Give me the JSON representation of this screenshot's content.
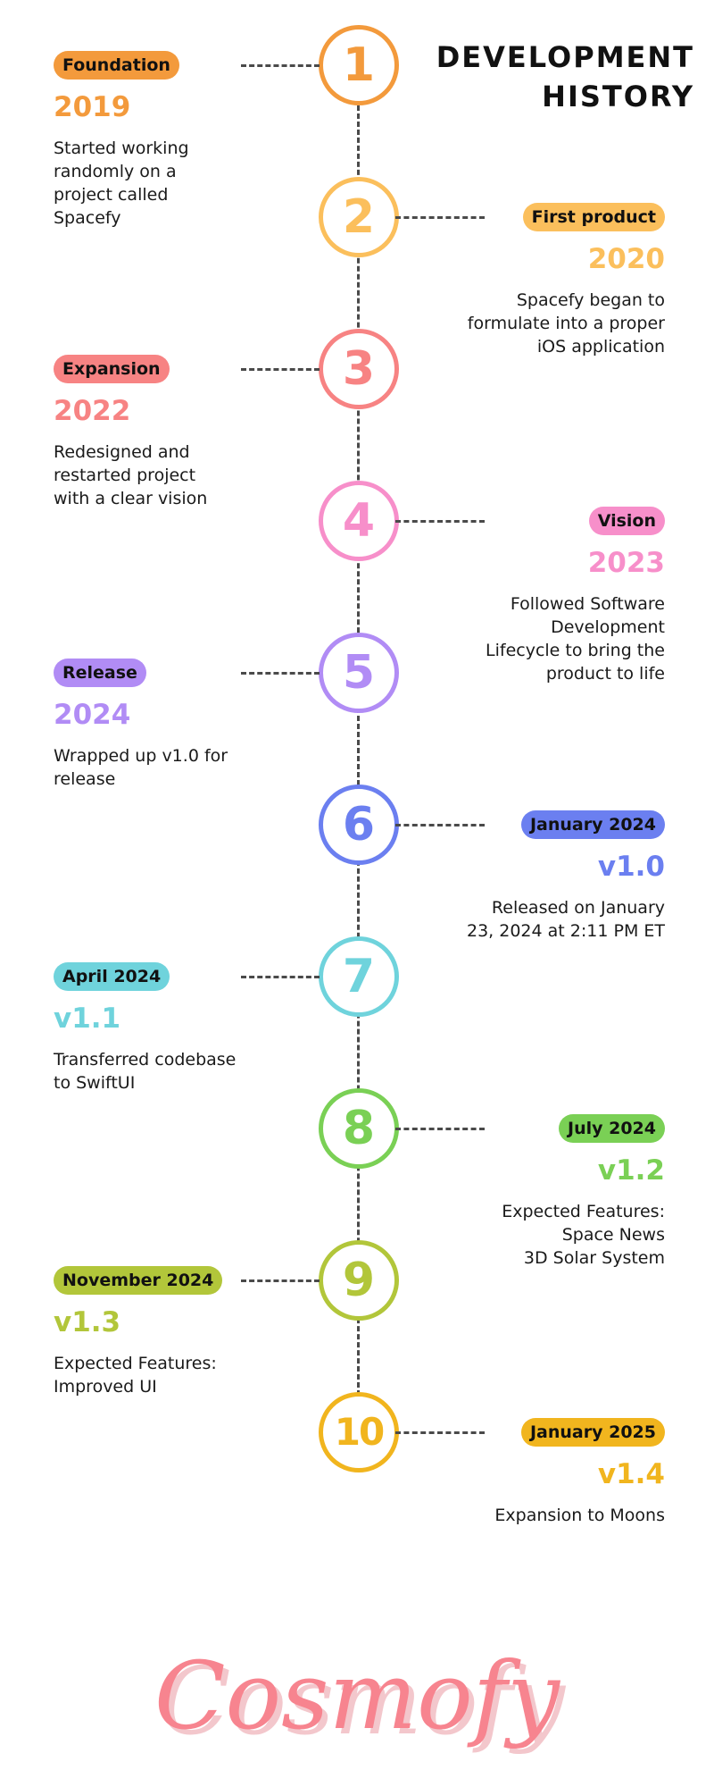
{
  "header": {
    "title_line1": "DEVELOPMENT",
    "title_line2": "HISTORY"
  },
  "milestones": [
    {
      "number": "1",
      "tag": "Foundation",
      "heading": "2019",
      "description": "Started working\nrandomly on a\nproject called\nSpacefy",
      "color": "#f39a3c"
    },
    {
      "number": "2",
      "tag": "First product",
      "heading": "2020",
      "description": "Spacefy began to\nformulate into a proper\niOS application",
      "color": "#fbbf5c"
    },
    {
      "number": "3",
      "tag": "Expansion",
      "heading": "2022",
      "description": "Redesigned and\nrestarted project\nwith a clear vision",
      "color": "#f78383"
    },
    {
      "number": "4",
      "tag": "Vision",
      "heading": "2023",
      "description": "Followed Software\nDevelopment\nLifecycle to bring the\nproduct to life",
      "color": "#f78fca"
    },
    {
      "number": "5",
      "tag": "Release",
      "heading": "2024",
      "description": "Wrapped up v1.0 for\nrelease",
      "color": "#b18cf5"
    },
    {
      "number": "6",
      "tag": "January 2024",
      "heading": "v1.0",
      "description": "Released on January\n23, 2024 at 2:11 PM ET",
      "color": "#6b7ff0"
    },
    {
      "number": "7",
      "tag": "April 2024",
      "heading": "v1.1",
      "description": "Transferred codebase\nto SwiftUI",
      "color": "#6fd3dc"
    },
    {
      "number": "8",
      "tag": "July 2024",
      "heading": "v1.2",
      "description": "Expected Features:\nSpace News\n3D Solar System",
      "color": "#7ad055"
    },
    {
      "number": "9",
      "tag": "November 2024",
      "heading": "v1.3",
      "description": "Expected Features:\nImproved UI",
      "color": "#b2c63a"
    },
    {
      "number": "10",
      "tag": "January 2025",
      "heading": "v1.4",
      "description": "Expansion to Moons",
      "color": "#f1b51e"
    }
  ],
  "logo": {
    "text": "Cosmofy",
    "color": "#f7848f"
  }
}
